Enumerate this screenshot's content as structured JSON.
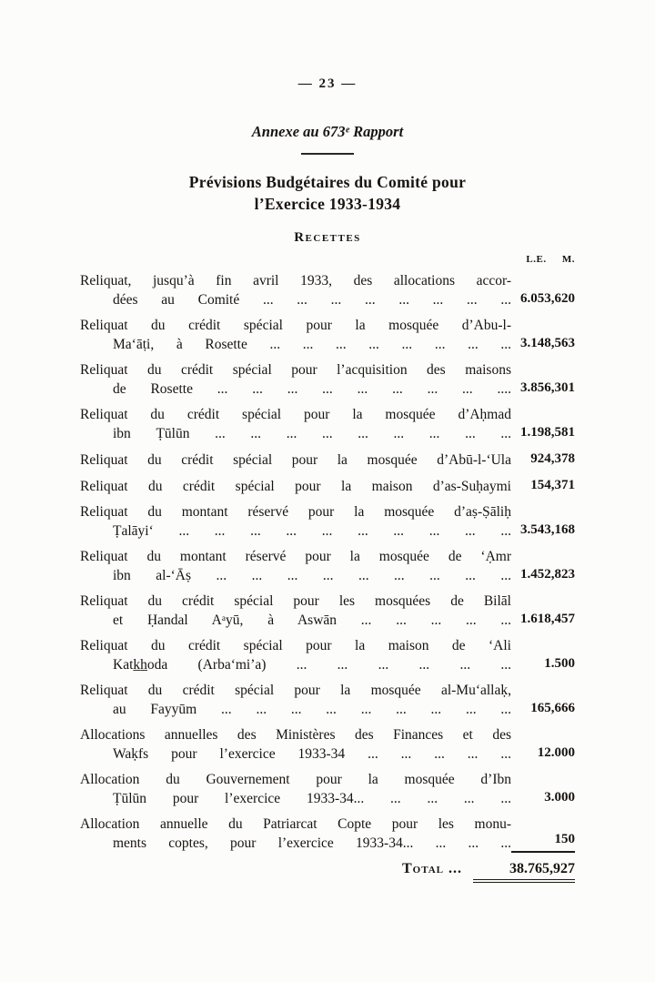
{
  "page": {
    "number": "— 23 —"
  },
  "header": {
    "annex": "Annexe au 673ᵉ Rapport",
    "title_line1": "Prévisions Budgétaires du Comité pour",
    "title_line2": "l’Exercice 1933-1934",
    "section_title": "Recettes",
    "currency_pounds": "L.E.",
    "currency_milliemes": "M."
  },
  "table": {
    "items": [
      {
        "label_lines": [
          "Reliquat, jusqu’à fin avril 1933, des allocations accor-",
          "dées au Comité ... ... ... ... ... ... ... ..."
        ],
        "amount": "6.053,620"
      },
      {
        "label_lines": [
          "Reliquat du crédit spécial pour la mosquée d’Abu-l-",
          "Ma‘āṭi, à Rosette ... ... ... ... ... ... ... ..."
        ],
        "amount": "3.148,563"
      },
      {
        "label_lines": [
          "Reliquat du crédit spécial pour l’acquisition des maisons",
          "de Rosette ... ... ... ... ... ... ... ... ...."
        ],
        "amount": "3.856,301"
      },
      {
        "label_lines": [
          "Reliquat du crédit spécial pour la mosquée d’Aḥmad",
          "ibn Ṭūlūn ... ... ... ... ... ... ... ... ..."
        ],
        "amount": "1.198,581"
      },
      {
        "label_lines": [
          "Reliquat du crédit spécial pour la mosquée d’Abū-l-‘Ula"
        ],
        "amount": "924,378"
      },
      {
        "label_lines": [
          "Reliquat du crédit spécial pour la maison d’as-Suḥaymi"
        ],
        "amount": "154,371"
      },
      {
        "label_lines": [
          "Reliquat du montant réservé pour la mosquée d’aṣ-Ṣāliḥ",
          "Ṭalāyi‘ ... ... ... ... ... ... ... ... ... ..."
        ],
        "amount": "3.543,168"
      },
      {
        "label_lines": [
          "Reliquat du montant réservé pour la mosquée de ‘Ạmr",
          "ibn al-‘Āṣ ... ... ... ... ... ... ... ... ..."
        ],
        "amount": "1.452,823"
      },
      {
        "label_lines": [
          "Reliquat du crédit spécial pour les mosquées de Bilāl",
          "et Ḥandal Aᵃyū, à Aswān ... ... ... ... ..."
        ],
        "amount": "1.618,457"
      },
      {
        "label_lines": [
          "Reliquat du crédit spécial pour la maison de ‘Ali",
          "Katk̲h̲oda (Arba‘mi’a) ... ... ... ... ... ..."
        ],
        "amount": "1.500"
      },
      {
        "label_lines": [
          "Reliquat du crédit spécial pour la mosquée al-Mu‘allaḳ,",
          "au Fayyūm ... ... ... ... ... ... ... ... ..."
        ],
        "amount": "165,666"
      },
      {
        "label_lines": [
          "Allocations annuelles des Ministères des Finances et des",
          "Waḳfs pour l’exercice 1933-34 ... ... ... ... ..."
        ],
        "amount": "12.000"
      },
      {
        "label_lines": [
          "Allocation du Gouvernement pour la mosquée d’Ibn",
          "Ṭūlūn pour l’exercice 1933-34... ... ... ... ..."
        ],
        "amount": "3.000"
      },
      {
        "label_lines": [
          "Allocation annuelle du Patriarcat Copte pour les monu-",
          "ments coptes, pour l’exercice 1933-34... ... ... ..."
        ],
        "amount": "150",
        "underline": true
      }
    ],
    "total_label": "Total ...",
    "total_amount": "38.765,927"
  }
}
